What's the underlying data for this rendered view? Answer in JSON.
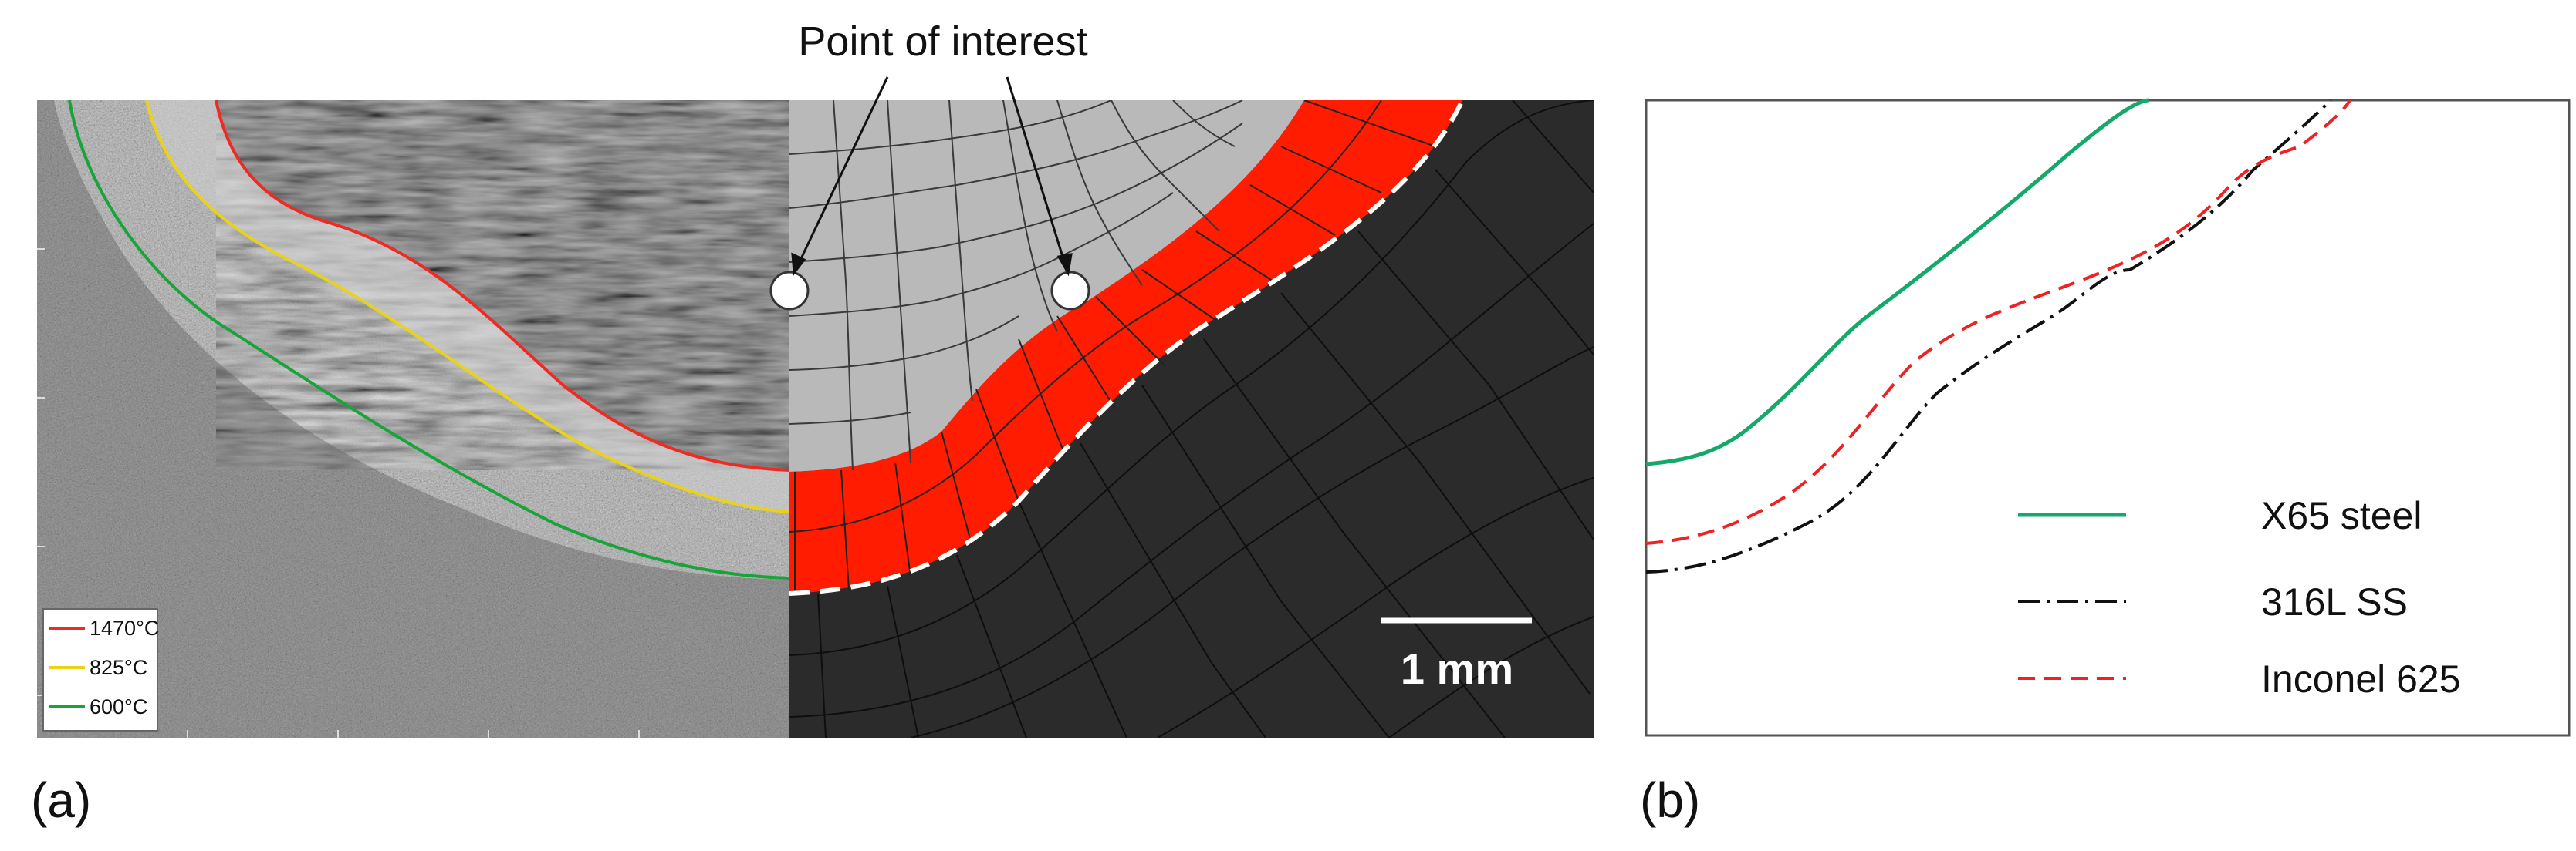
{
  "panel_a": {
    "label": "(a)",
    "annotation": "Point of interest",
    "scale_bar": "1 mm",
    "legend": [
      {
        "label": "1470°C",
        "color": "#ee2a24"
      },
      {
        "label": "825°C",
        "color": "#e8d21a"
      },
      {
        "label": "600°C",
        "color": "#1aa33a"
      }
    ],
    "colors": {
      "micrograph_dark": "#2a2a2a",
      "mesh_light": "#b9b9b9",
      "mesh_dark": "#2b2b2b",
      "fusion_line": "#ffffff"
    }
  },
  "panel_b": {
    "label": "(b)",
    "legend": [
      {
        "label": "X65 steel",
        "color": "#14a86b",
        "style": "solid"
      },
      {
        "label": "316L SS",
        "color": "#111111",
        "style": "dash-dot"
      },
      {
        "label": "Inconel 625",
        "color": "#ee2222",
        "style": "dashed"
      }
    ]
  }
}
